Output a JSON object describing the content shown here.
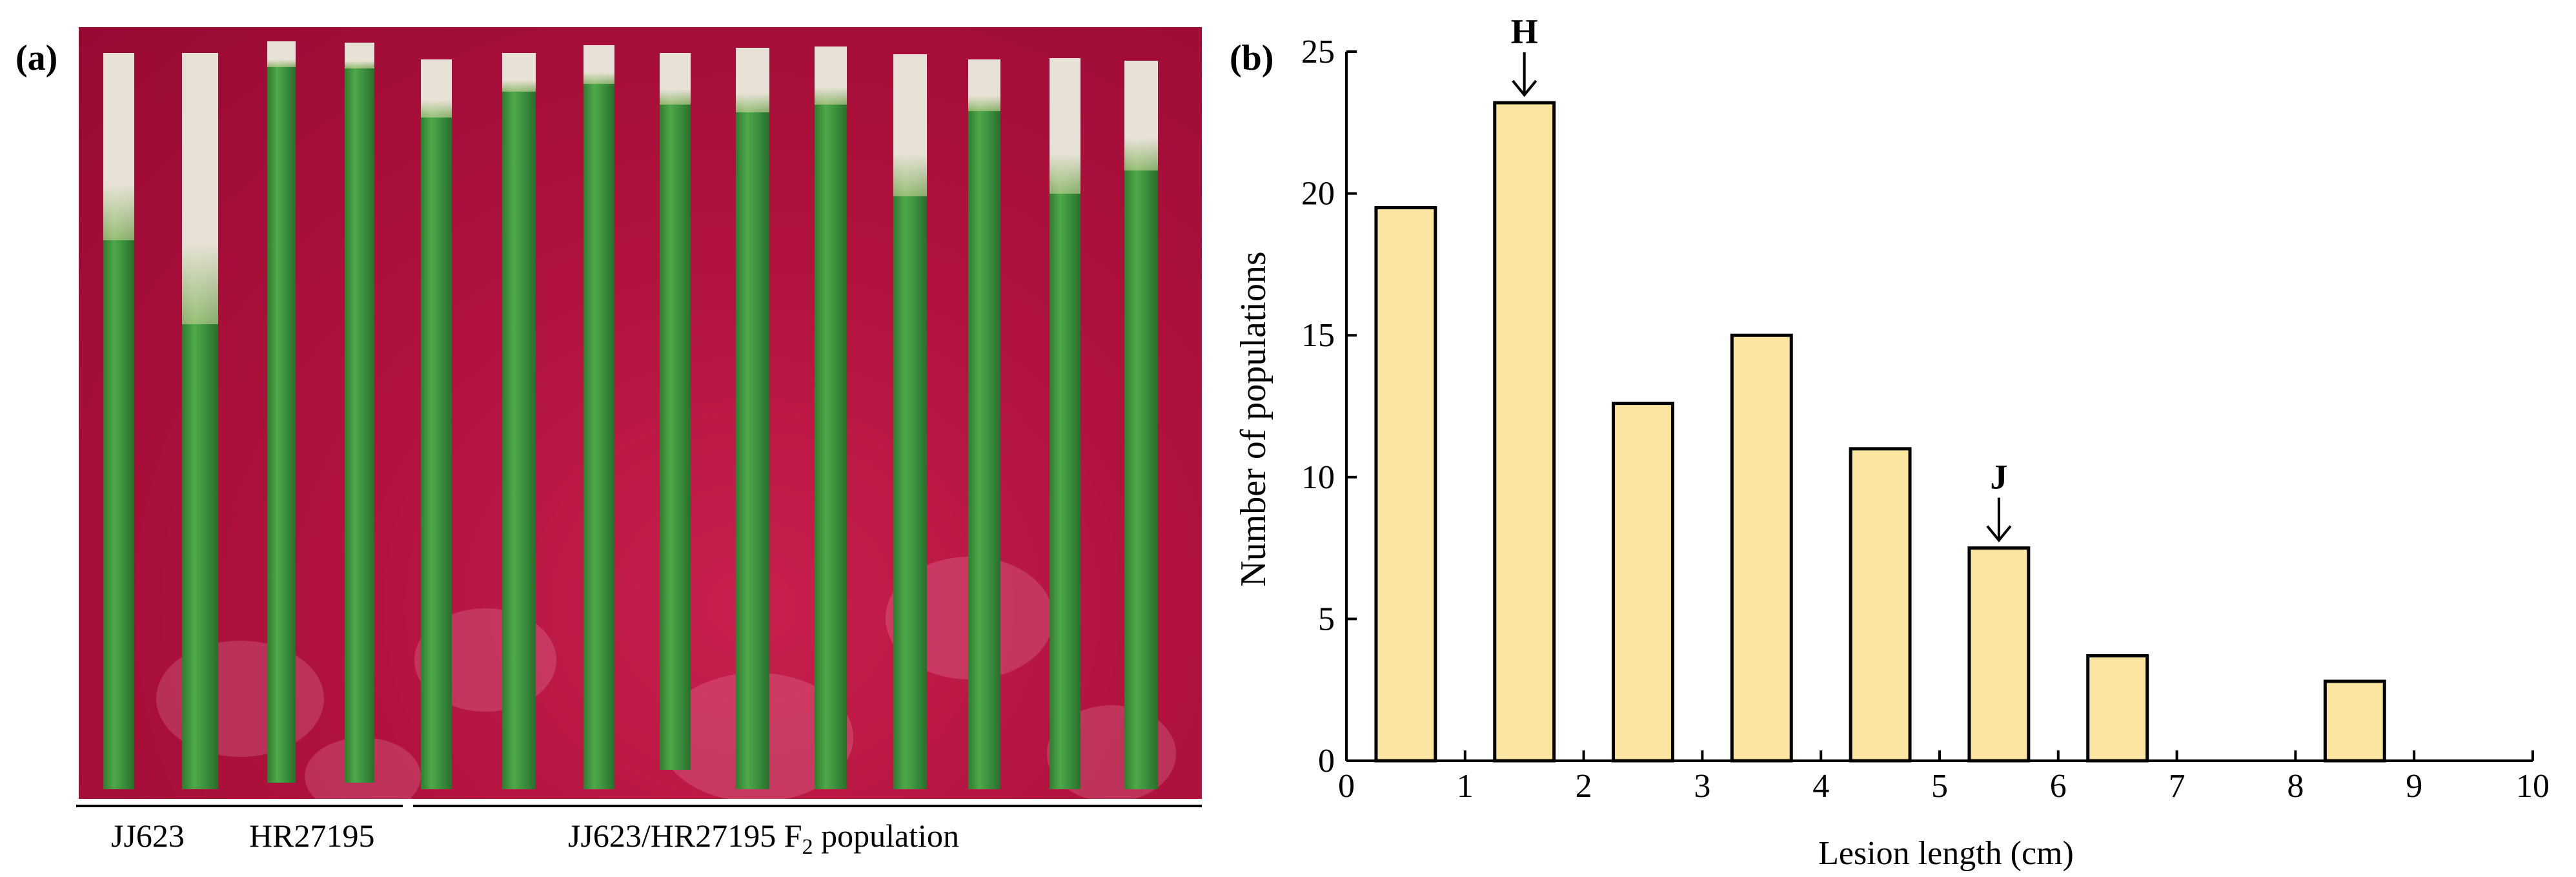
{
  "panels": {
    "a_label": "(a)",
    "b_label": "(b)"
  },
  "photo": {
    "groups": [
      {
        "label": "JJ623"
      },
      {
        "label": "HR27195"
      },
      {
        "label": "JJ623/HR27195 F",
        "subscript": "2",
        "suffix": " population"
      }
    ],
    "colors": {
      "background": "#b0123d",
      "leaf": "#3e9440",
      "lesion": "#e8e2d6"
    }
  },
  "chart_data": {
    "type": "bar",
    "title": "",
    "xlabel": "Lesion length (cm)",
    "ylabel": "Number of populations",
    "xlim": [
      0,
      10
    ],
    "ylim": [
      0,
      25
    ],
    "xticks": [
      0,
      1,
      2,
      3,
      4,
      5,
      6,
      7,
      8,
      9,
      10
    ],
    "yticks": [
      0,
      5,
      10,
      15,
      20,
      25
    ],
    "bins": [
      {
        "x0": 0.25,
        "x1": 0.75,
        "value": 19.5
      },
      {
        "x0": 1.25,
        "x1": 1.75,
        "value": 23.2
      },
      {
        "x0": 2.25,
        "x1": 2.75,
        "value": 12.6
      },
      {
        "x0": 3.25,
        "x1": 3.75,
        "value": 15.0
      },
      {
        "x0": 4.25,
        "x1": 4.75,
        "value": 11.0
      },
      {
        "x0": 5.25,
        "x1": 5.75,
        "value": 7.5
      },
      {
        "x0": 6.25,
        "x1": 6.75,
        "value": 3.7
      },
      {
        "x0": 8.25,
        "x1": 8.75,
        "value": 2.8
      }
    ],
    "annotations": [
      {
        "text": "H",
        "x": 1.5,
        "bin_value": 23.2
      },
      {
        "text": "J",
        "x": 5.5,
        "bin_value": 7.5
      }
    ],
    "bar_color": "#fce5a1",
    "edge_color": "#000000"
  }
}
